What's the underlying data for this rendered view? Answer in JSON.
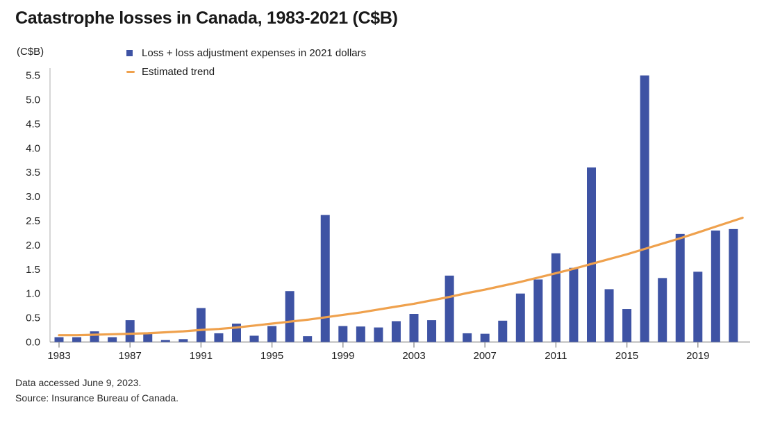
{
  "title": "Catastrophe losses in Canada, 1983-2021 (C$B)",
  "y_axis_unit": "(C$B)",
  "legend": {
    "bars_label": "Loss + loss adjustment expenses in 2021 dollars",
    "trend_label": "Estimated trend"
  },
  "footer": {
    "line1": "Data accessed June 9, 2023.",
    "line2": "Source: Insurance Bureau of Canada."
  },
  "colors": {
    "bar": "#3E53A4",
    "trend": "#EFA14D",
    "axis_line": "#999999",
    "y_axis_line": "#c9c9c9",
    "tick_text": "#1d1d1d"
  },
  "chart_data": {
    "type": "bar",
    "title": "Catastrophe losses in Canada, 1983-2021 (C$B)",
    "xlabel": "",
    "ylabel": "(C$B)",
    "ylim": [
      0,
      5.5
    ],
    "grid": false,
    "legend_position": "top-left",
    "x": [
      1983,
      1984,
      1985,
      1986,
      1987,
      1988,
      1989,
      1990,
      1991,
      1992,
      1993,
      1994,
      1995,
      1996,
      1997,
      1998,
      1999,
      2000,
      2001,
      2002,
      2003,
      2004,
      2005,
      2006,
      2007,
      2008,
      2009,
      2010,
      2011,
      2012,
      2013,
      2014,
      2015,
      2016,
      2017,
      2018,
      2019,
      2020,
      2021
    ],
    "series": [
      {
        "name": "Loss + loss adjustment expenses in 2021 dollars",
        "type": "bar",
        "color": "#3E53A4",
        "values": [
          0.1,
          0.1,
          0.22,
          0.1,
          0.45,
          0.18,
          0.04,
          0.06,
          0.7,
          0.18,
          0.38,
          0.13,
          0.33,
          1.05,
          0.12,
          2.62,
          0.33,
          0.32,
          0.3,
          0.43,
          0.58,
          0.45,
          1.37,
          0.18,
          0.17,
          0.44,
          1.0,
          1.29,
          1.83,
          1.53,
          3.6,
          1.09,
          0.68,
          5.5,
          1.32,
          2.23,
          1.45,
          2.3,
          2.33
        ]
      },
      {
        "name": "Estimated trend",
        "type": "line",
        "color": "#EFA14D",
        "values": [
          0.14,
          0.14,
          0.15,
          0.16,
          0.17,
          0.18,
          0.2,
          0.22,
          0.25,
          0.27,
          0.3,
          0.34,
          0.38,
          0.42,
          0.46,
          0.51,
          0.56,
          0.61,
          0.67,
          0.73,
          0.79,
          0.86,
          0.93,
          1.01,
          1.08,
          1.16,
          1.24,
          1.33,
          1.42,
          1.51,
          1.61,
          1.71,
          1.81,
          1.92,
          2.03,
          2.14,
          2.26,
          2.38,
          2.5
        ]
      }
    ],
    "xticks": [
      1983,
      1987,
      1991,
      1995,
      1999,
      2003,
      2007,
      2011,
      2015,
      2019
    ],
    "yticks": [
      0.0,
      0.5,
      1.0,
      1.5,
      2.0,
      2.5,
      3.0,
      3.5,
      4.0,
      4.5,
      5.0,
      5.5
    ]
  }
}
